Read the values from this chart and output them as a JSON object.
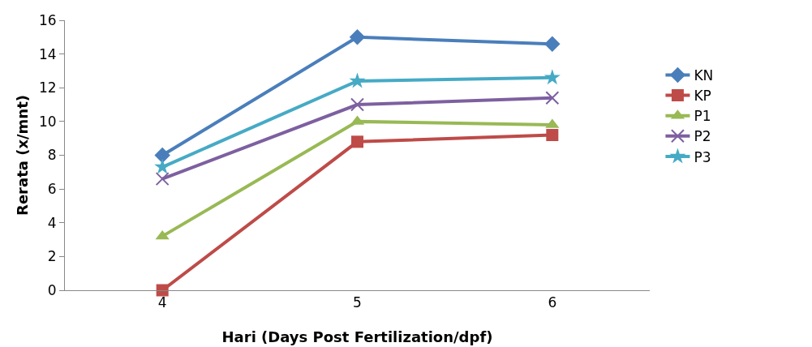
{
  "chart_data": {
    "type": "line",
    "xlabel": "Hari (Days Post Fertilization/dpf)",
    "ylabel": "Rerata (x/mnt)",
    "categories": [
      "4",
      "5",
      "6"
    ],
    "series": [
      {
        "name": "KN",
        "color": "#4a7ebb",
        "marker": "diamond",
        "values": [
          8.0,
          15.0,
          14.6
        ]
      },
      {
        "name": "KP",
        "color": "#be4b48",
        "marker": "square",
        "values": [
          0,
          8.8,
          9.2
        ]
      },
      {
        "name": "P1",
        "color": "#98b954",
        "marker": "triangle",
        "values": [
          3.2,
          10.0,
          9.8
        ]
      },
      {
        "name": "P2",
        "color": "#7d60a0",
        "marker": "cross",
        "values": [
          6.6,
          11.0,
          11.4
        ]
      },
      {
        "name": "P3",
        "color": "#46aac5",
        "marker": "star",
        "values": [
          7.3,
          12.4,
          12.6
        ]
      }
    ],
    "ylim": [
      0,
      16
    ],
    "yticks": [
      0,
      2,
      4,
      6,
      8,
      10,
      12,
      14,
      16
    ],
    "grid": false,
    "legend": "right",
    "line_style": "solid"
  }
}
